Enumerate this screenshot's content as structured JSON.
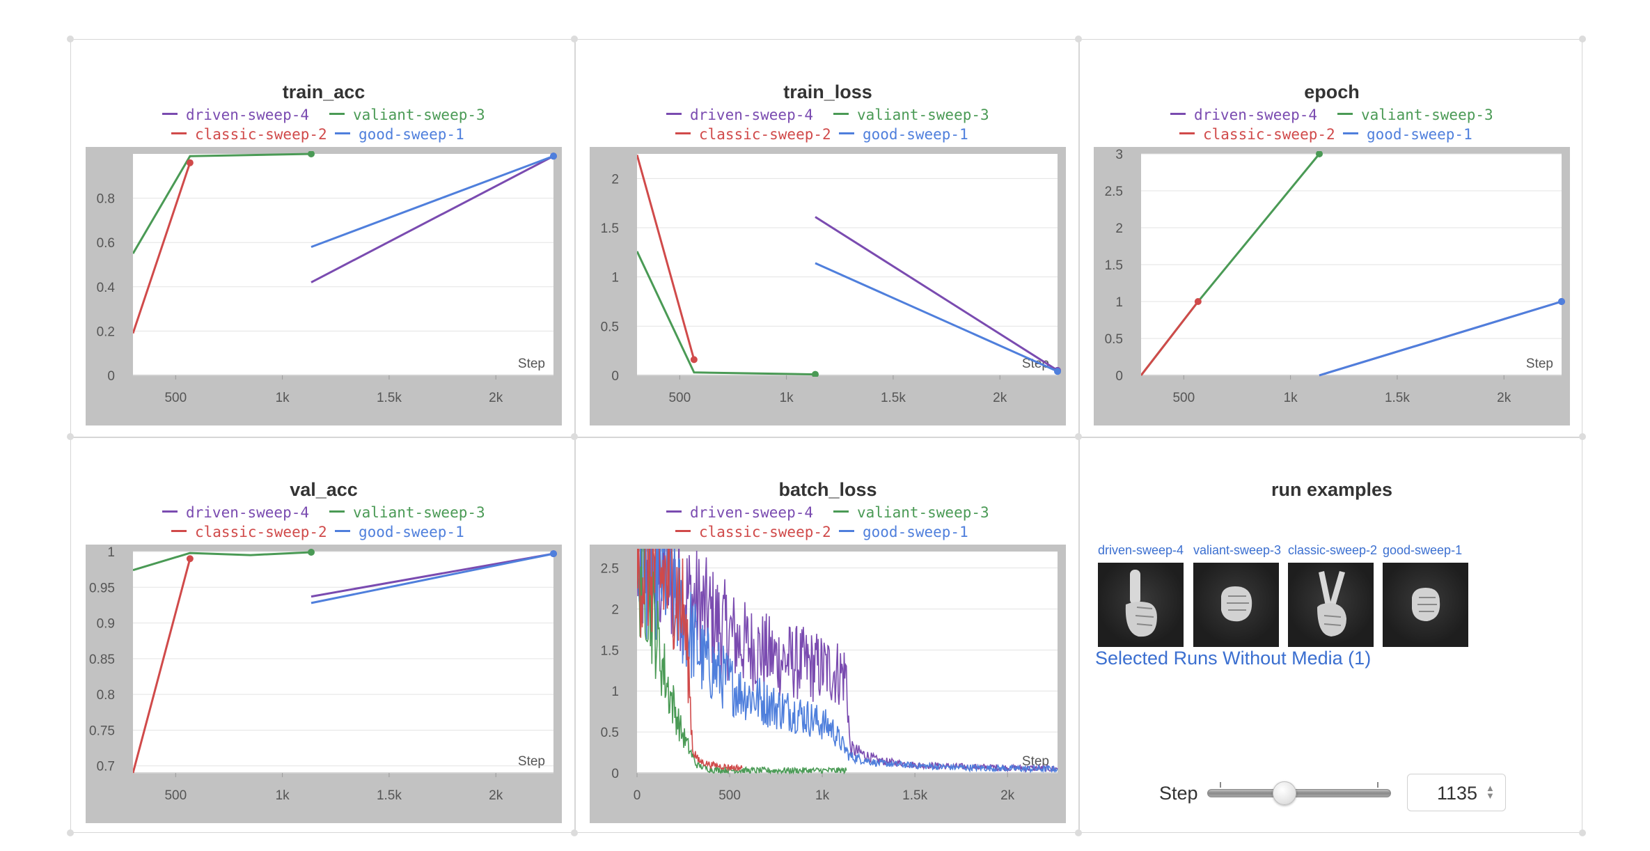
{
  "colors": {
    "driven-sweep-4": "#7a4bb0",
    "valiant-sweep-3": "#4a9a55",
    "classic-sweep-2": "#d04a4a",
    "good-sweep-1": "#4f7fdc"
  },
  "legend": [
    {
      "name": "driven-sweep-4",
      "color": "#7a4bb0"
    },
    {
      "name": "valiant-sweep-3",
      "color": "#4a9a55"
    },
    {
      "name": "classic-sweep-2",
      "color": "#d04a4a"
    },
    {
      "name": "good-sweep-1",
      "color": "#4f7fdc"
    }
  ],
  "chart_data": [
    {
      "type": "line",
      "title": "train_acc",
      "xlabel": "Step",
      "xlim": [
        300,
        2270
      ],
      "ylim": [
        0,
        1.0
      ],
      "xticks": [
        500,
        1000,
        1500,
        2000
      ],
      "xtick_labels": [
        "500",
        "1k",
        "1.5k",
        "2k"
      ],
      "yticks": [
        0,
        0.2,
        0.4,
        0.6,
        0.8
      ],
      "ytick_labels": [
        "0",
        "0.2",
        "0.4",
        "0.6",
        "0.8"
      ],
      "series": [
        {
          "name": "driven-sweep-4",
          "x": [
            1135,
            2270
          ],
          "y": [
            0.42,
            0.99
          ],
          "end_marker": true
        },
        {
          "name": "valiant-sweep-3",
          "x": [
            300,
            567,
            1135
          ],
          "y": [
            0.55,
            0.99,
            1.0
          ],
          "end_marker": true
        },
        {
          "name": "classic-sweep-2",
          "x": [
            300,
            567
          ],
          "y": [
            0.19,
            0.96
          ],
          "end_marker": true
        },
        {
          "name": "good-sweep-1",
          "x": [
            1135,
            2270
          ],
          "y": [
            0.58,
            0.99
          ],
          "end_marker": true
        }
      ]
    },
    {
      "type": "line",
      "title": "train_loss",
      "xlabel": "Step",
      "xlim": [
        300,
        2270
      ],
      "ylim": [
        0,
        2.25
      ],
      "xticks": [
        500,
        1000,
        1500,
        2000
      ],
      "xtick_labels": [
        "500",
        "1k",
        "1.5k",
        "2k"
      ],
      "yticks": [
        0,
        0.5,
        1,
        1.5,
        2
      ],
      "ytick_labels": [
        "0",
        "0.5",
        "1",
        "1.5",
        "2"
      ],
      "series": [
        {
          "name": "driven-sweep-4",
          "x": [
            1135,
            2270
          ],
          "y": [
            1.61,
            0.05
          ],
          "end_marker": true
        },
        {
          "name": "valiant-sweep-3",
          "x": [
            300,
            567,
            1135
          ],
          "y": [
            1.26,
            0.03,
            0.01
          ],
          "end_marker": true
        },
        {
          "name": "classic-sweep-2",
          "x": [
            300,
            567
          ],
          "y": [
            2.24,
            0.16
          ],
          "end_marker": true
        },
        {
          "name": "good-sweep-1",
          "x": [
            1135,
            2270
          ],
          "y": [
            1.14,
            0.04
          ],
          "end_marker": true
        }
      ]
    },
    {
      "type": "line",
      "title": "epoch",
      "xlabel": "Step",
      "xlim": [
        300,
        2270
      ],
      "ylim": [
        0,
        3
      ],
      "xticks": [
        500,
        1000,
        1500,
        2000
      ],
      "xtick_labels": [
        "500",
        "1k",
        "1.5k",
        "2k"
      ],
      "yticks": [
        0,
        0.5,
        1,
        1.5,
        2,
        2.5,
        3
      ],
      "ytick_labels": [
        "0",
        "0.5",
        "1",
        "1.5",
        "2",
        "2.5",
        "3"
      ],
      "series": [
        {
          "name": "driven-sweep-4",
          "x": [
            1135,
            2270
          ],
          "y": [
            0,
            1
          ],
          "end_marker": true
        },
        {
          "name": "valiant-sweep-3",
          "x": [
            300,
            567,
            1135
          ],
          "y": [
            0,
            1,
            3
          ],
          "end_marker": true
        },
        {
          "name": "classic-sweep-2",
          "x": [
            300,
            567
          ],
          "y": [
            0,
            1
          ],
          "end_marker": true
        },
        {
          "name": "good-sweep-1",
          "x": [
            1135,
            2270
          ],
          "y": [
            0,
            1
          ],
          "end_marker": true
        }
      ]
    },
    {
      "type": "line",
      "title": "val_acc",
      "xlabel": "Step",
      "xlim": [
        300,
        2270
      ],
      "ylim": [
        0.69,
        1.0
      ],
      "xticks": [
        500,
        1000,
        1500,
        2000
      ],
      "xtick_labels": [
        "500",
        "1k",
        "1.5k",
        "2k"
      ],
      "yticks": [
        0.7,
        0.75,
        0.8,
        0.85,
        0.9,
        0.95,
        1
      ],
      "ytick_labels": [
        "0.7",
        "0.75",
        "0.8",
        "0.85",
        "0.9",
        "0.95",
        "1"
      ],
      "series": [
        {
          "name": "driven-sweep-4",
          "x": [
            1135,
            2270
          ],
          "y": [
            0.937,
            0.997
          ],
          "end_marker": true
        },
        {
          "name": "valiant-sweep-3",
          "x": [
            300,
            567,
            851,
            1135
          ],
          "y": [
            0.974,
            0.998,
            0.995,
            0.999
          ],
          "end_marker": true
        },
        {
          "name": "classic-sweep-2",
          "x": [
            300,
            567
          ],
          "y": [
            0.69,
            0.99
          ],
          "end_marker": true
        },
        {
          "name": "good-sweep-1",
          "x": [
            1135,
            2270
          ],
          "y": [
            0.928,
            0.997
          ],
          "end_marker": true
        }
      ]
    },
    {
      "type": "line",
      "title": "batch_loss",
      "xlabel": "Step",
      "xlim": [
        0,
        2270
      ],
      "ylim": [
        0,
        2.7
      ],
      "xticks": [
        0,
        500,
        1000,
        1500,
        2000
      ],
      "xtick_labels": [
        "0",
        "500",
        "1k",
        "1.5k",
        "2k"
      ],
      "yticks": [
        0,
        0.5,
        1,
        1.5,
        2,
        2.5
      ],
      "ytick_labels": [
        "0",
        "0.5",
        "1",
        "1.5",
        "2",
        "2.5"
      ],
      "series": [
        {
          "name": "driven-sweep-4",
          "x": [
            0,
            150,
            250,
            350,
            450,
            550,
            650,
            750,
            850,
            950,
            1050,
            1130,
            1150,
            1300,
            1500,
            1700,
            1900,
            2100,
            2270
          ],
          "y": [
            2.5,
            2.4,
            2.2,
            2.0,
            1.8,
            1.6,
            1.5,
            1.4,
            1.35,
            1.3,
            1.25,
            1.2,
            0.3,
            0.15,
            0.1,
            0.08,
            0.07,
            0.06,
            0.05
          ],
          "noisy": true
        },
        {
          "name": "good-sweep-1",
          "x": [
            0,
            150,
            250,
            350,
            450,
            550,
            650,
            750,
            850,
            950,
            1050,
            1150,
            1300,
            1500,
            1700,
            1900,
            2100,
            2270
          ],
          "y": [
            2.5,
            2.45,
            1.9,
            1.4,
            1.2,
            1.0,
            0.9,
            0.8,
            0.75,
            0.65,
            0.55,
            0.2,
            0.12,
            0.09,
            0.07,
            0.06,
            0.05,
            0.05
          ],
          "noisy": true
        },
        {
          "name": "valiant-sweep-3",
          "x": [
            0,
            40,
            80,
            120,
            160,
            200,
            240,
            280,
            320,
            400,
            600,
            800,
            1000,
            1130
          ],
          "y": [
            2.5,
            2.45,
            2.0,
            1.5,
            1.1,
            0.8,
            0.5,
            0.3,
            0.1,
            0.04,
            0.03,
            0.03,
            0.03,
            0.03
          ],
          "noisy": true
        },
        {
          "name": "classic-sweep-2",
          "x": [
            0,
            100,
            200,
            250,
            280,
            300,
            330,
            400,
            500,
            567
          ],
          "y": [
            2.5,
            2.45,
            2.3,
            2.0,
            1.2,
            0.3,
            0.15,
            0.1,
            0.07,
            0.06
          ],
          "noisy": true
        }
      ]
    }
  ],
  "media": {
    "title": "run examples",
    "thumbs": [
      {
        "caption": "driven-sweep-4",
        "gesture": "one-finger"
      },
      {
        "caption": "valiant-sweep-3",
        "gesture": "fist"
      },
      {
        "caption": "classic-sweep-2",
        "gesture": "two-fingers"
      },
      {
        "caption": "good-sweep-1",
        "gesture": "fist"
      }
    ],
    "no_media_text": "Selected Runs Without Media (1)",
    "step_label": "Step",
    "step_value": "1135",
    "slider_fraction": 0.41
  }
}
